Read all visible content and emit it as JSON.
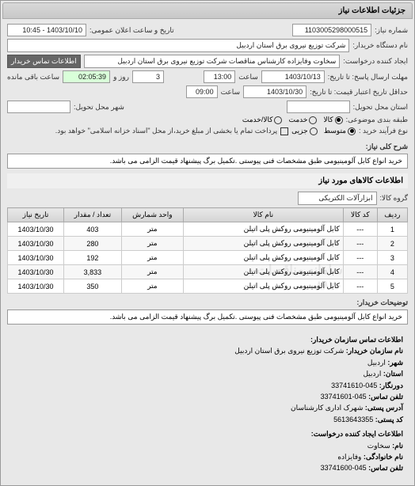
{
  "panel_title": "جزئیات اطلاعات نیاز",
  "fields": {
    "need_no_label": "شماره نیاز:",
    "need_no": "1103005298000515",
    "announce_label": "تاریخ و ساعت اعلان عمومی:",
    "announce_val": "1403/10/10 - 10:45",
    "buyer_name_label": "نام دستگاه خریدار:",
    "buyer_name": "شرکت توزیع نیروی برق استان اردبیل",
    "requester_label": "ایجاد کننده درخواست:",
    "requester": "سخاوت وفایزاده کارشناس مناقصات شرکت توزیع نیروی برق استان اردبیل",
    "contact_btn": "اطلاعات تماس خریدار",
    "deadline_send_label": "مهلت ارسال پاسخ: تا تاریخ:",
    "deadline_send_date": "1403/10/13",
    "deadline_send_time_label": "ساعت",
    "deadline_send_time": "13:00",
    "remain_days_label": "روز و",
    "remain_days": "3",
    "remain_time": "02:05:39",
    "remain_time_label": "ساعت باقی مانده",
    "validity_label": "حداقل تاریخ اعتبار قیمت: تا تاریخ:",
    "validity_date": "1403/10/30",
    "validity_time_label": "ساعت",
    "validity_time": "09:00",
    "delivery_province_label": "استان محل تحویل:",
    "delivery_city_label": "شهر محل تحویل:",
    "packaging_label": "طبقه بندی موضوعی:",
    "pkg_opt1": "کالا",
    "pkg_opt2": "خدمت",
    "pkg_opt3": "کالا/خدمت",
    "buy_type_label": "نوع فرآیند خرید :",
    "buy_opt1": "متوسط",
    "buy_opt2": "جزیی",
    "buy_note": "پرداخت تمام یا بخشی از مبلغ خرید،از محل \"اسناد خزانه اسلامی\" خواهد بود.",
    "need_title_label": "شرح کلی نیاز:",
    "need_title": "خرید انواع کابل آلومینیومی طبق مشخصات فنی پیوستی .تکمیل برگ پیشنهاد قیمت الزامی می باشد.",
    "goods_section": "اطلاعات کالاهای مورد نیاز",
    "group_label": "گروه کالا:",
    "group_val": "ابزارآلات الکتریکی",
    "buyer_desc_label": "توضیحات خریدار:",
    "buyer_desc": "خرید انواع کابل آلومینیومی طبق مشخصات فنی پیوستی .تکمیل برگ پیشنهاد قیمت الزامی می باشد."
  },
  "table": {
    "headers": {
      "row": "ردیف",
      "code": "کد کالا",
      "name": "نام کالا",
      "unit": "واحد شمارش",
      "qty": "تعداد / مقدار",
      "date": "تاریخ نیاز"
    },
    "rows": [
      {
        "n": "1",
        "code": "---",
        "name": "کابل آلومینیومی روکش پلی اتیلن",
        "unit": "متر",
        "qty": "403",
        "date": "1403/10/30"
      },
      {
        "n": "2",
        "code": "---",
        "name": "کابل آلومینیومی روکش پلی اتیلن",
        "unit": "متر",
        "qty": "280",
        "date": "1403/10/30"
      },
      {
        "n": "3",
        "code": "---",
        "name": "کابل آلومینیومی روکش پلی اتیلن",
        "unit": "متر",
        "qty": "192",
        "date": "1403/10/30"
      },
      {
        "n": "4",
        "code": "---",
        "name": "کابل آلومینیومی روکش پلی اتیلن",
        "unit": "متر",
        "qty": "3,833",
        "date": "1403/10/30"
      },
      {
        "n": "5",
        "code": "---",
        "name": "کابل آلومینیومی روکش پلی اتیلن",
        "unit": "متر",
        "qty": "350",
        "date": "1403/10/30"
      }
    ],
    "watermark": "سامانه مناقصات - ۸۸۲۰"
  },
  "footer": {
    "title": "اطلاعات تماس سازمان خریدار:",
    "org_label": "نام سازمان خریدار:",
    "org": "شرکت توزیع نیروی برق استان اردبیل",
    "province_label": "شهر:",
    "province": "اردبیل",
    "city_label": "استان:",
    "city": "اردبیل",
    "fax_label": "دورنگار:",
    "fax": "045-33741610",
    "tel_label": "تلفن تماس:",
    "tel": "045-33741601",
    "address_label": "آدرس پستی:",
    "address": "شهرک اداری کارشناسان",
    "postal_label": "کد پستی:",
    "postal": "5613643355",
    "creator_title": "اطلاعات ایجاد کننده درخواست:",
    "fname_label": "نام:",
    "fname": "سخاوت",
    "lname_label": "نام خانوادگی:",
    "lname": "وفایزاده",
    "ctel_label": "تلفن تماس:",
    "ctel": "045-33741600"
  }
}
